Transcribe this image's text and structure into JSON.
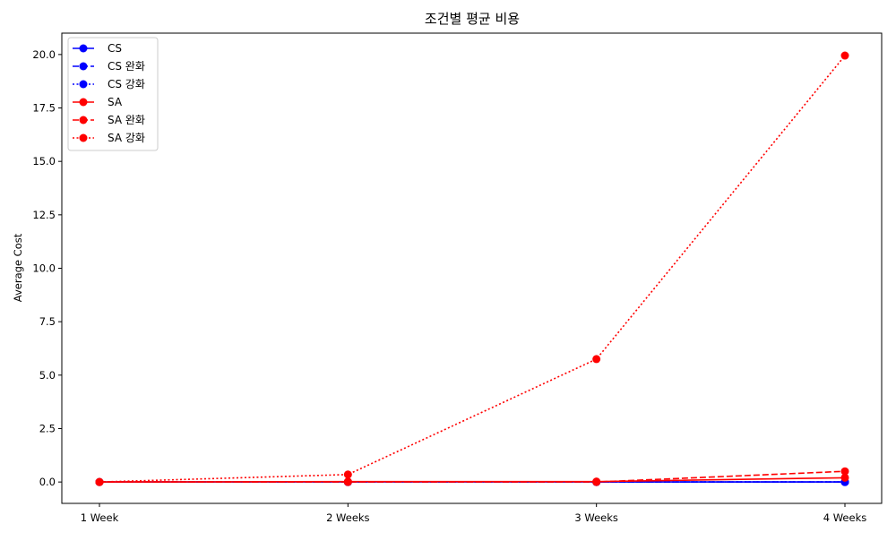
{
  "chart_data": {
    "type": "line",
    "title": "조건별 평균 비용",
    "xlabel": "",
    "ylabel": "Average Cost",
    "categories": [
      "1 Week",
      "2 Weeks",
      "3 Weeks",
      "4 Weeks"
    ],
    "ylim": [
      -1.0,
      21.0
    ],
    "yticks": [
      0.0,
      2.5,
      5.0,
      7.5,
      10.0,
      12.5,
      15.0,
      17.5,
      20.0
    ],
    "ytick_labels": [
      "0.0",
      "2.5",
      "5.0",
      "7.5",
      "10.0",
      "12.5",
      "15.0",
      "17.5",
      "20.0"
    ],
    "grid": false,
    "legend_position": "top-left",
    "series": [
      {
        "name": "CS",
        "color": "#0000ff",
        "linestyle": "solid",
        "marker": "circle",
        "values": [
          0,
          0,
          0,
          0
        ]
      },
      {
        "name": "CS 완화",
        "color": "#0000ff",
        "linestyle": "dashed",
        "marker": "circle",
        "values": [
          0,
          0,
          0,
          0
        ]
      },
      {
        "name": "CS 강화",
        "color": "#0000ff",
        "linestyle": "dotted",
        "marker": "circle",
        "values": [
          0,
          0,
          0,
          0
        ]
      },
      {
        "name": "SA",
        "color": "#ff0000",
        "linestyle": "solid",
        "marker": "circle",
        "values": [
          0,
          0.02,
          0.02,
          0.2
        ]
      },
      {
        "name": "SA 완화",
        "color": "#ff0000",
        "linestyle": "dashed",
        "marker": "circle",
        "values": [
          0,
          0,
          0,
          0.5
        ]
      },
      {
        "name": "SA 강화",
        "color": "#ff0000",
        "linestyle": "dotted",
        "marker": "circle",
        "values": [
          0,
          0.35,
          5.75,
          19.95
        ]
      }
    ]
  }
}
